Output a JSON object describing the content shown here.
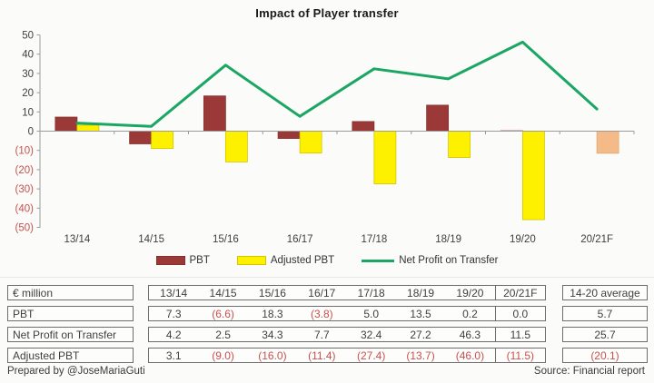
{
  "title": "Impact of Player transfer",
  "colors": {
    "pbt": "#9B3938",
    "pbt_border": "#86302E",
    "adjusted": "#FDF100",
    "adjusted_border": "#D4C500",
    "forecast": "#F4BA87",
    "forecast_border": "#E3A874",
    "line": "#1AA663",
    "axis": "#9B9B9B",
    "text": "#3F3F3F",
    "negative": "#C5524E"
  },
  "chart_data": {
    "type": "bar",
    "title": "Impact of Player transfer",
    "categories": [
      "13/14",
      "14/15",
      "15/16",
      "16/17",
      "17/18",
      "18/19",
      "19/20",
      "20/21F"
    ],
    "series": [
      {
        "name": "PBT",
        "type": "bar",
        "values": [
          7.3,
          -6.6,
          18.3,
          -3.8,
          5.0,
          13.5,
          0.2,
          0.0
        ]
      },
      {
        "name": "Adjusted PBT",
        "type": "bar",
        "values": [
          3.1,
          -9.0,
          -16.0,
          -11.4,
          -27.4,
          -13.7,
          -46.0,
          -11.5
        ]
      },
      {
        "name": "Net Profit on Transfer",
        "type": "line",
        "values": [
          4.2,
          2.5,
          34.3,
          7.7,
          32.4,
          27.2,
          46.3,
          11.5
        ]
      }
    ],
    "ylim": [
      -50,
      50
    ],
    "yticks": [
      50,
      40,
      30,
      20,
      10,
      0,
      -10,
      -20,
      -30,
      -40,
      -50
    ],
    "ytick_labels": [
      "50",
      "40",
      "30",
      "20",
      "10",
      "0",
      "(10)",
      "(20)",
      "(30)",
      "(40)",
      "(50)"
    ],
    "grid": false,
    "legend_position": "bottom",
    "forecast_category": "20/21F"
  },
  "table": {
    "unit_label": "€ million",
    "columns": [
      "13/14",
      "14/15",
      "15/16",
      "16/17",
      "17/18",
      "18/19",
      "19/20",
      "20/21F"
    ],
    "average_label": "14-20 average",
    "rows": [
      {
        "label": "PBT",
        "values": [
          "7.3",
          "(6.6)",
          "18.3",
          "(3.8)",
          "5.0",
          "13.5",
          "0.2",
          "0.0"
        ],
        "average": "5.7"
      },
      {
        "label": "Net Profit on Transfer",
        "values": [
          "4.2",
          "2.5",
          "34.3",
          "7.7",
          "32.4",
          "27.2",
          "46.3",
          "11.5"
        ],
        "average": "25.7"
      },
      {
        "label": "Adjusted PBT",
        "values": [
          "3.1",
          "(9.0)",
          "(16.0)",
          "(11.4)",
          "(27.4)",
          "(13.7)",
          "(46.0)",
          "(11.5)"
        ],
        "average": "(20.1)"
      }
    ]
  },
  "footer": {
    "prepared_by": "Prepared by @JoseMariaGuti",
    "source": "Source: Financial report"
  }
}
